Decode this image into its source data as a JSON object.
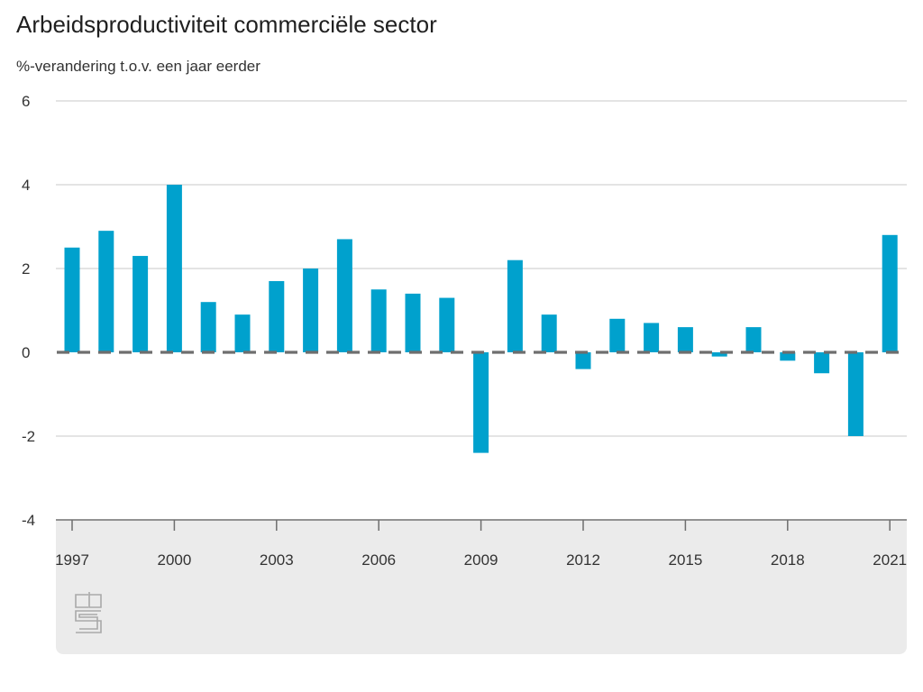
{
  "title": "Arbeidsproductiviteit commerciële sector",
  "subtitle": "%-verandering t.o.v. een jaar eerder",
  "colors": {
    "bar": "#00a1cd",
    "grid": "#d4d4d4",
    "zero_line": "#6e6e6e",
    "axis": "#6e6e6e",
    "panel": "#ebebeb",
    "logo": "#a9a9a9"
  },
  "logo": {
    "text": "cbs",
    "icon": "cbs-logo-icon"
  },
  "chart_data": {
    "type": "bar",
    "categories": [
      "1997",
      "1998",
      "1999",
      "2000",
      "2001",
      "2002",
      "2003",
      "2004",
      "2005",
      "2006",
      "2007",
      "2008",
      "2009",
      "2010",
      "2011",
      "2012",
      "2013",
      "2014",
      "2015",
      "2016",
      "2017",
      "2018",
      "2019",
      "2020",
      "2021"
    ],
    "values": [
      2.5,
      2.9,
      2.3,
      4.0,
      1.2,
      0.9,
      1.7,
      2.0,
      2.7,
      1.5,
      1.4,
      1.3,
      -2.4,
      2.2,
      0.9,
      -0.4,
      0.8,
      0.7,
      0.6,
      -0.1,
      0.6,
      -0.2,
      -0.5,
      -2.0,
      2.8
    ],
    "ylim": [
      -4,
      6
    ],
    "yticks": [
      "6",
      "4",
      "2",
      "0",
      "-2",
      "-4"
    ],
    "xtick_labels": [
      "1997",
      "2000",
      "2003",
      "2006",
      "2009",
      "2012",
      "2015",
      "2018",
      "2021"
    ],
    "xlabel": "",
    "ylabel": "",
    "grid": true,
    "legend": "none"
  }
}
